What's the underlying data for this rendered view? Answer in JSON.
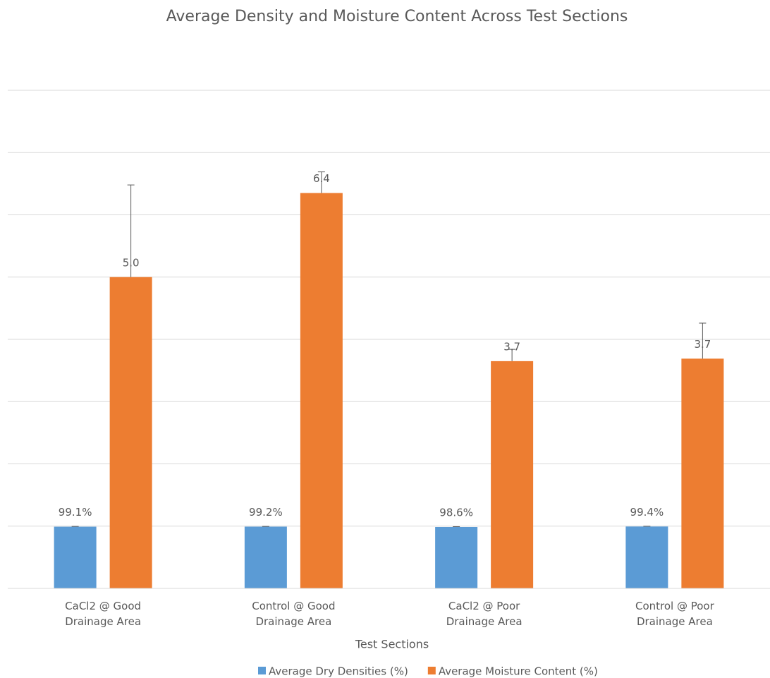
{
  "chart_data": {
    "type": "bar",
    "title": "Average Density and Moisture Content Across Test Sections",
    "x_label": "Test Sections",
    "categories": [
      "CaCl2 @ Good Drainage Area",
      "Control @ Good Drainage Area",
      "CaCl2 @ Poor Drainage Area",
      "Control @ Poor Drainage Area"
    ],
    "series": [
      {
        "name": "Average Dry Densities (%)",
        "color": "#5b9bd5",
        "values": [
          0.991,
          0.992,
          0.986,
          0.994
        ],
        "value_labels": [
          "99.1%",
          "99.2%",
          "98.6%",
          "99.4%"
        ],
        "errors": [
          0.005,
          0.004,
          0.005,
          0.004
        ]
      },
      {
        "name": "Average Moisture Content (%)",
        "color": "#ed7d31",
        "values": [
          5.0,
          6.35,
          3.65,
          3.69
        ],
        "value_labels": [
          "5.0",
          "6.4",
          "3.7",
          "3.7"
        ],
        "errors": [
          1.48,
          0.34,
          0.19,
          0.57
        ]
      }
    ],
    "ylim": [
      0,
      8
    ],
    "yticks": [
      0,
      1,
      2,
      3,
      4,
      5,
      6,
      7,
      8
    ],
    "grid": true,
    "legend": "bottom"
  }
}
